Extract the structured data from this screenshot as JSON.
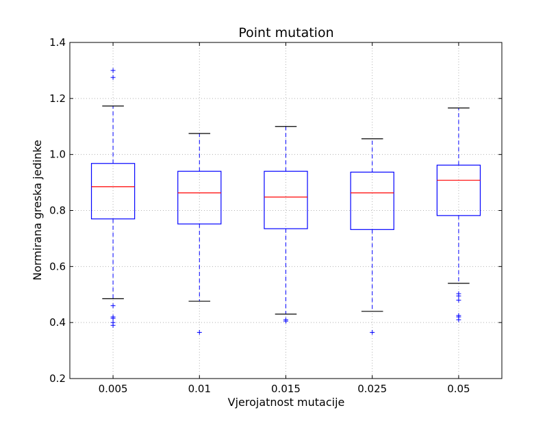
{
  "chart_data": {
    "type": "boxplot",
    "title": "Point mutation",
    "xlabel": "Vjerojatnost mutacije",
    "ylabel": "Normirana greska jedinke",
    "ylim": [
      0.2,
      1.4
    ],
    "yticks": [
      "0.2",
      "0.4",
      "0.6",
      "0.8",
      "1.0",
      "1.2",
      "1.4"
    ],
    "categories": [
      "0.005",
      "0.01",
      "0.015",
      "0.025",
      "0.05"
    ],
    "grid": true,
    "colors": {
      "box": "#0000ff",
      "median": "#ff0000",
      "whisker": "#0000ff",
      "cap": "#000000",
      "flier": "#0000ff",
      "grid": "#b0b0b0"
    },
    "boxes": [
      {
        "category": "0.005",
        "whislo": 0.485,
        "q1": 0.77,
        "median": 0.885,
        "q3": 0.968,
        "whishi": 1.173,
        "fliers": [
          0.39,
          0.4,
          0.415,
          0.42,
          0.46,
          1.275,
          1.3
        ]
      },
      {
        "category": "0.01",
        "whislo": 0.476,
        "q1": 0.752,
        "median": 0.863,
        "q3": 0.94,
        "whishi": 1.075,
        "fliers": [
          0.365
        ]
      },
      {
        "category": "0.015",
        "whislo": 0.43,
        "q1": 0.735,
        "median": 0.848,
        "q3": 0.94,
        "whishi": 1.1,
        "fliers": [
          0.405,
          0.41
        ]
      },
      {
        "category": "0.025",
        "whislo": 0.44,
        "q1": 0.732,
        "median": 0.863,
        "q3": 0.937,
        "whishi": 1.056,
        "fliers": [
          0.365
        ]
      },
      {
        "category": "0.05",
        "whislo": 0.54,
        "q1": 0.782,
        "median": 0.908,
        "q3": 0.962,
        "whishi": 1.166,
        "fliers": [
          0.41,
          0.42,
          0.425,
          0.48,
          0.495,
          0.503
        ]
      }
    ]
  }
}
